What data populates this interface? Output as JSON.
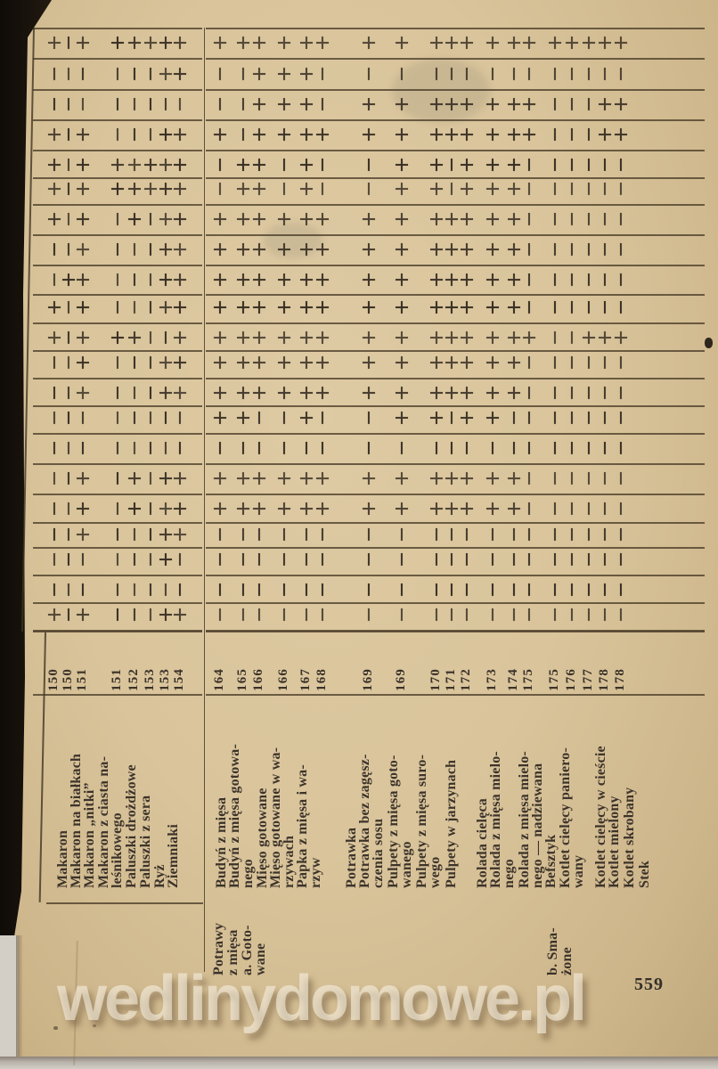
{
  "page": {
    "number": "559",
    "watermark": "wedlinydomowe.pl"
  },
  "table": {
    "symbols": {
      "present": "+",
      "absent": "−"
    },
    "rows": [
      {
        "left": "+-++++++",
        "right": "+++++++++++++++++++"
      },
      {
        "left": "------++",
        "right": "--+++--------------"
      },
      {
        "left": "--------",
        "right": "--+++-++++++++---++"
      },
      {
        "left": "+-+---++",
        "right": "+-++++++++++++---++"
      },
      {
        "left": "+-++++++",
        "right": "-++-+--++-+++------"
      },
      {
        "left": "+-++++++",
        "right": "-++-+--++-+++------"
      },
      {
        "left": "+-+-+-++",
        "right": "+++++++++++++------"
      },
      {
        "left": "--+---++",
        "right": "+++++++++++++------"
      },
      {
        "left": "-++---++",
        "right": "+++++++++++++------"
      },
      {
        "left": "+-+---++",
        "right": "+++++++++++++------"
      },
      {
        "left": "+-+++--+",
        "right": "++++++++++++++--+++"
      },
      {
        "left": "--+---++",
        "right": "+++++++++++++------"
      },
      {
        "left": "--+---++",
        "right": "+++++++++++++------"
      },
      {
        "left": "--------",
        "right": "++--+--++-++-------"
      },
      {
        "left": "--------",
        "right": "-------------------"
      },
      {
        "left": "--+-+-++",
        "right": "+++++++++++++------"
      },
      {
        "left": "--+-+-++",
        "right": "+++++++++++++------"
      },
      {
        "left": "--+---++",
        "right": "-------------------"
      },
      {
        "left": "------+-",
        "right": "-------------------"
      },
      {
        "left": "--------",
        "right": "-------------------"
      },
      {
        "left": "+-+---++",
        "right": "-------------------"
      }
    ],
    "left_section": {
      "items": [
        {
          "page": "150",
          "lines": [
            "Makaron"
          ]
        },
        {
          "page": "150",
          "lines": [
            "Makaron na białkach"
          ]
        },
        {
          "page": "151",
          "lines": [
            "Makaron „nitki”"
          ]
        },
        {
          "page": "151",
          "lines": [
            "Makaron z ciasta na-",
            "leśnikowego"
          ]
        },
        {
          "page": "152",
          "lines": [
            "Paluszki drożdżowe"
          ]
        },
        {
          "page": "153",
          "lines": [
            "Paluszki z sera"
          ]
        },
        {
          "page": "153",
          "lines": [
            "Ryż"
          ]
        },
        {
          "page": "154",
          "lines": [
            "Ziemniaki"
          ]
        }
      ]
    },
    "right_section": {
      "items": [
        {
          "page": "164",
          "lines": [
            "Budyń z mięsa"
          ]
        },
        {
          "page": "165",
          "lines": [
            "Budyń z mięsa gotowa-",
            "nego"
          ]
        },
        {
          "page": "166",
          "lines": [
            "Mięso gotowane"
          ]
        },
        {
          "page": "166",
          "lines": [
            "Mięso gotowane w wa-",
            "rzywach"
          ]
        },
        {
          "page": "167",
          "lines": [
            "Papka z mięsa i wa-",
            "rzyw"
          ]
        },
        {
          "page": "168",
          "lines": [
            "Potrawka"
          ]
        },
        {
          "page": "169",
          "lines": [
            "Potrawka bez zagęsz-",
            "czenia sosu"
          ]
        },
        {
          "page": "169",
          "lines": [
            "Pulpety z mięsa goto-",
            "wanego"
          ]
        },
        {
          "page": "170",
          "lines": [
            "Pulpety z mięsa suro-",
            "wego"
          ]
        },
        {
          "page": "171",
          "lines": [
            "Pulpety w jarzynach"
          ]
        },
        {
          "page": "172",
          "lines": [
            "Rolada cielęca"
          ]
        },
        {
          "page": "173",
          "lines": [
            "Rolada z mięsa mielo-",
            "nego"
          ]
        },
        {
          "page": "174",
          "lines": [
            "Rolada z mięsa mielo-",
            "nego — nadziewana"
          ]
        },
        {
          "page": "175",
          "lines": [
            "Befsztyk"
          ]
        },
        {
          "page": "175",
          "lines": [
            "Kotlet cielęcy paniero-",
            "wany"
          ]
        },
        {
          "page": "176",
          "lines": [
            "Kotlet cielęcy w cieście"
          ]
        },
        {
          "page": "177",
          "lines": [
            "Kotlet mielony"
          ]
        },
        {
          "page": "178",
          "lines": [
            "Kotlet skrobany"
          ]
        },
        {
          "page": "178",
          "lines": [
            "Stek"
          ]
        }
      ],
      "category_a": [
        "Potrawy",
        "z mięsa",
        "a. Goto-",
        "wane"
      ],
      "category_b": [
        "b. Sma-",
        "żone"
      ]
    }
  }
}
